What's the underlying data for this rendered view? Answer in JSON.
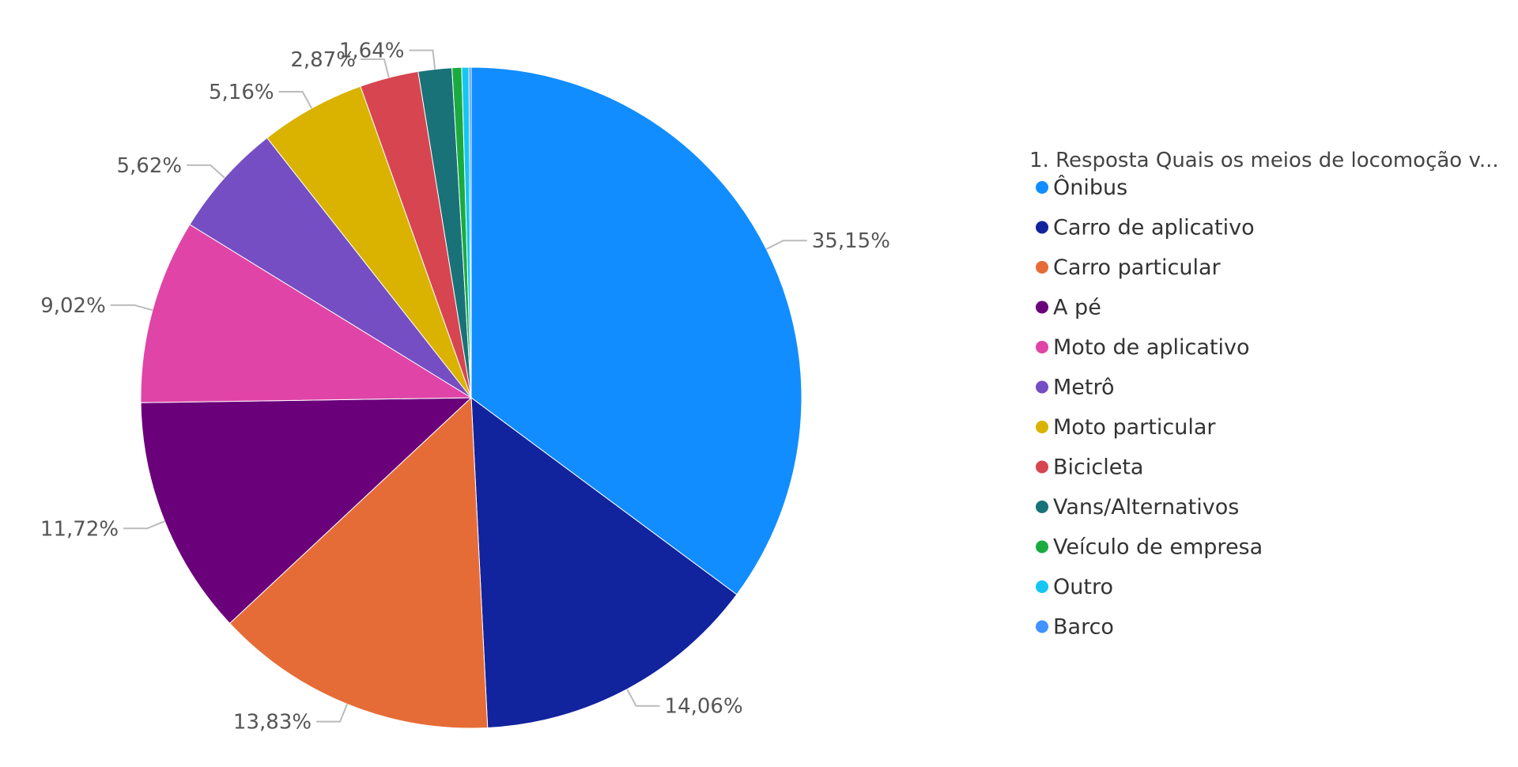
{
  "chart_data": {
    "type": "pie",
    "legend_title": "1. Resposta Quais os meios de locomoção v...",
    "legend_position": "right",
    "start_angle_deg": 0,
    "direction": "clockwise",
    "categories": [
      "Ônibus",
      "Carro de aplicativo",
      "Carro particular",
      "A pé",
      "Moto de aplicativo",
      "Metrô",
      "Moto particular",
      "Bicicleta",
      "Vans/Alternativos",
      "Veículo de empresa",
      "Outro",
      "Barco"
    ],
    "values": [
      35.15,
      14.06,
      13.83,
      11.72,
      9.02,
      5.62,
      5.16,
      2.87,
      1.64,
      0.47,
      0.35,
      0.11
    ],
    "labels": [
      "35,15%",
      "14,06%",
      "13,83%",
      "11,72%",
      "9,02%",
      "5,62%",
      "5,16%",
      "2,87%",
      "1,64%",
      "",
      "",
      ""
    ],
    "colors": [
      "#118DFF",
      "#12239E",
      "#E66C37",
      "#6B007B",
      "#E044A7",
      "#744EC2",
      "#D9B300",
      "#D64550",
      "#197278",
      "#1AAB40",
      "#15C6F4",
      "#4092FF"
    ]
  }
}
